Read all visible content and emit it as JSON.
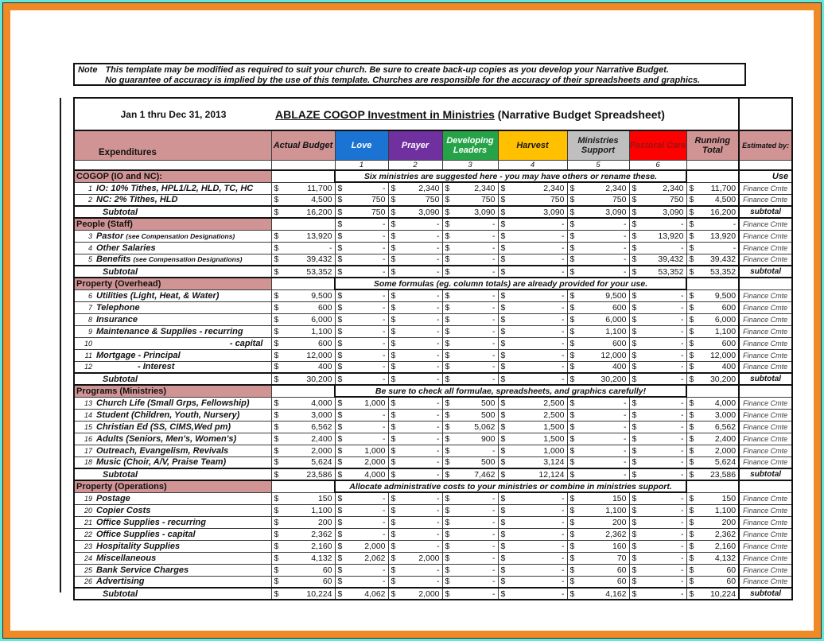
{
  "theme": {
    "frame_teal": "#64e6d9",
    "frame_orange": "#f08a26",
    "header_pink": "#d19494",
    "border_black": "#111111"
  },
  "note": {
    "label": "Note",
    "line1": "This template may be modified as required to suit your church.  Be sure to create back-up copies as you develop your Narrative Budget.",
    "line2": "No guarantee of accuracy is implied by the use of this template.  Churches are responsible for the accuracy of their spreadsheets and graphics."
  },
  "title": {
    "date_range": "Jan 1 thru Dec 31, 2013",
    "underlined": "ABLAZE COGOP  Investment in Ministries",
    "rest": " (Narrative Budget Spreadsheet)"
  },
  "columns": {
    "expenditures": "Expenditures",
    "actual_budget": "Actual Budget",
    "running_total": "Running Total",
    "estimated_by": "Estimated by:",
    "ministries": [
      {
        "label": "Love",
        "number": "1",
        "bg": "#1b74d4",
        "fg": "#ffffff"
      },
      {
        "label": "Prayer",
        "number": "2",
        "bg": "#7030a0",
        "fg": "#ffffff"
      },
      {
        "label": "Developing Leaders",
        "number": "3",
        "bg": "#26a348",
        "fg": "#ffffff"
      },
      {
        "label": "Harvest",
        "number": "4",
        "bg": "#ffc000",
        "fg": "#1a1a1a"
      },
      {
        "label": "Ministries Support",
        "number": "5",
        "bg": "#bfbfbf",
        "fg": "#1a1a1a"
      },
      {
        "label": "Pastoral Care",
        "number": "6",
        "bg": "#fe0000",
        "fg": "#9c1313"
      }
    ]
  },
  "sections": [
    {
      "name": "COGOP (IO and NC):",
      "header": {
        "type": "note",
        "note": "Six ministries are suggested here - you may have others or rename these.",
        "est": "Use"
      },
      "rows": [
        {
          "num": "1",
          "label": "IO: 10% Tithes, HPL1/L2, HLD, TC, HC",
          "values": [
            "11,700",
            "-",
            "2,340",
            "2,340",
            "2,340",
            "2,340",
            "2,340",
            "11,700"
          ],
          "est": "Finance Cmte"
        },
        {
          "num": "2",
          "label": "NC: 2% Tithes, HLD",
          "values": [
            "4,500",
            "750",
            "750",
            "750",
            "750",
            "750",
            "750",
            "4,500"
          ],
          "est": "Finance Cmte"
        }
      ],
      "subtotal": {
        "label": "Subtotal",
        "values": [
          "16,200",
          "750",
          "3,090",
          "3,090",
          "3,090",
          "3,090",
          "3,090",
          "16,200"
        ],
        "est": "subtotal"
      }
    },
    {
      "name": "People (Staff)",
      "header": {
        "type": "dashes",
        "values": [
          "",
          "-",
          "-",
          "-",
          "-",
          "-",
          "-",
          "-"
        ],
        "est": "Finance Cmte"
      },
      "rows": [
        {
          "num": "3",
          "label": "Pastor",
          "label_small": "(see Compensation Designations)",
          "values": [
            "13,920",
            "-",
            "-",
            "-",
            "-",
            "-",
            "13,920",
            "13,920"
          ],
          "est": "Finance Cmte"
        },
        {
          "num": "4",
          "label": "Other Salaries",
          "values": [
            "-",
            "-",
            "-",
            "-",
            "-",
            "-",
            "-",
            "-"
          ],
          "est": "Finance Cmte"
        },
        {
          "num": "5",
          "label": "Benefits",
          "label_small": "(see Compensation Designations)",
          "values": [
            "39,432",
            "-",
            "-",
            "-",
            "-",
            "-",
            "39,432",
            "39,432"
          ],
          "est": "Finance Cmte"
        }
      ],
      "subtotal": {
        "label": "Subtotal",
        "values": [
          "53,352",
          "-",
          "-",
          "-",
          "-",
          "-",
          "53,352",
          "53,352"
        ],
        "est": "subtotal"
      }
    },
    {
      "name": "Property (Overhead)",
      "header": {
        "type": "note",
        "note": "Some formulas (eg. column totals) are already provided for your use.",
        "est": ""
      },
      "rows": [
        {
          "num": "6",
          "label": "Utilities (Light, Heat, & Water)",
          "values": [
            "9,500",
            "-",
            "-",
            "-",
            "-",
            "9,500",
            "-",
            "9,500"
          ],
          "est": "Finance Cmte"
        },
        {
          "num": "7",
          "label": "Telephone",
          "values": [
            "600",
            "-",
            "-",
            "-",
            "-",
            "600",
            "-",
            "600"
          ],
          "est": "Finance Cmte"
        },
        {
          "num": "8",
          "label": "Insurance",
          "values": [
            "6,000",
            "-",
            "-",
            "-",
            "-",
            "6,000",
            "-",
            "6,000"
          ],
          "est": "Finance Cmte"
        },
        {
          "num": "9",
          "label": "Maintenance & Supplies - recurring",
          "values": [
            "1,100",
            "-",
            "-",
            "-",
            "-",
            "1,100",
            "-",
            "1,100"
          ],
          "est": "Finance Cmte"
        },
        {
          "num": "10",
          "label": "- capital",
          "label_style": "alignr",
          "values": [
            "600",
            "-",
            "-",
            "-",
            "-",
            "600",
            "-",
            "600"
          ],
          "est": "Finance Cmte"
        },
        {
          "num": "11",
          "label": "Mortgage  - Principal",
          "values": [
            "12,000",
            "-",
            "-",
            "-",
            "-",
            "12,000",
            "-",
            "12,000"
          ],
          "est": "Finance Cmte"
        },
        {
          "num": "12",
          "label": "- Interest",
          "label_style": "indent2",
          "values": [
            "400",
            "-",
            "-",
            "-",
            "-",
            "400",
            "-",
            "400"
          ],
          "est": "Finance Cmte"
        }
      ],
      "subtotal": {
        "label": "Subtotal",
        "values": [
          "30,200",
          "-",
          "-",
          "-",
          "-",
          "30,200",
          "-",
          "30,200"
        ],
        "est": "subtotal"
      }
    },
    {
      "name": "Programs (Ministries)",
      "header": {
        "type": "note",
        "note": "Be sure to check all formulae, spreadsheets, and graphics carefully!",
        "est": ""
      },
      "rows": [
        {
          "num": "13",
          "label": "Church Life (Small Grps, Fellowship)",
          "values": [
            "4,000",
            "1,000",
            "-",
            "500",
            "2,500",
            "-",
            "-",
            "4,000"
          ],
          "est": "Finance Cmte"
        },
        {
          "num": "14",
          "label": "Student (Children, Youth, Nursery)",
          "values": [
            "3,000",
            "-",
            "-",
            "500",
            "2,500",
            "-",
            "-",
            "3,000"
          ],
          "est": "Finance Cmte"
        },
        {
          "num": "15",
          "label": "Christian Ed (SS, CIMS,Wed pm)",
          "values": [
            "6,562",
            "-",
            "-",
            "5,062",
            "1,500",
            "-",
            "-",
            "6,562"
          ],
          "est": "Finance Cmte"
        },
        {
          "num": "16",
          "label": "Adults (Seniors, Men's, Women's)",
          "values": [
            "2,400",
            "-",
            "-",
            "900",
            "1,500",
            "-",
            "-",
            "2,400"
          ],
          "est": "Finance Cmte"
        },
        {
          "num": "17",
          "label": "Outreach, Evangelism, Revivals",
          "values": [
            "2,000",
            "1,000",
            "-",
            "-",
            "1,000",
            "-",
            "-",
            "2,000"
          ],
          "est": "Finance Cmte"
        },
        {
          "num": "18",
          "label": "Music (Choir, A/V, Praise Team)",
          "values": [
            "5,624",
            "2,000",
            "-",
            "500",
            "3,124",
            "-",
            "-",
            "5,624"
          ],
          "est": "Finance Cmte"
        }
      ],
      "subtotal": {
        "label": "Subtotal",
        "values": [
          "23,586",
          "4,000",
          "-",
          "7,462",
          "12,124",
          "-",
          "-",
          "23,586"
        ],
        "est": "subtotal"
      }
    },
    {
      "name": "Property (Operations)",
      "header": {
        "type": "note",
        "note": "Allocate administrative costs to your ministries or combine in ministries support.",
        "est": ""
      },
      "rows": [
        {
          "num": "19",
          "label": "Postage",
          "values": [
            "150",
            "-",
            "-",
            "-",
            "-",
            "150",
            "-",
            "150"
          ],
          "est": "Finance Cmte"
        },
        {
          "num": "20",
          "label": "Copier Costs",
          "values": [
            "1,100",
            "-",
            "-",
            "-",
            "-",
            "1,100",
            "-",
            "1,100"
          ],
          "est": "Finance Cmte"
        },
        {
          "num": "21",
          "label": "Office Supplies - recurring",
          "values": [
            "200",
            "-",
            "-",
            "-",
            "-",
            "200",
            "-",
            "200"
          ],
          "est": "Finance Cmte"
        },
        {
          "num": "22",
          "label": "Office Supplies - capital",
          "values": [
            "2,362",
            "-",
            "-",
            "-",
            "-",
            "2,362",
            "-",
            "2,362"
          ],
          "est": "Finance Cmte"
        },
        {
          "num": "23",
          "label": "Hospitality Supplies",
          "values": [
            "2,160",
            "2,000",
            "-",
            "-",
            "-",
            "160",
            "-",
            "2,160"
          ],
          "est": "Finance Cmte"
        },
        {
          "num": "24",
          "label": "Miscellaneous",
          "values": [
            "4,132",
            "2,062",
            "2,000",
            "-",
            "-",
            "70",
            "-",
            "4,132"
          ],
          "est": "Finance Cmte"
        },
        {
          "num": "25",
          "label": "Bank Service Charges",
          "values": [
            "60",
            "-",
            "-",
            "-",
            "-",
            "60",
            "-",
            "60"
          ],
          "est": "Finance Cmte"
        },
        {
          "num": "26",
          "label": "Advertising",
          "values": [
            "60",
            "-",
            "-",
            "-",
            "-",
            "60",
            "-",
            "60"
          ],
          "est": "Finance Cmte"
        }
      ],
      "subtotal": {
        "label": "Subtotal",
        "values": [
          "10,224",
          "4,062",
          "2,000",
          "-",
          "-",
          "4,162",
          "-",
          "10,224"
        ],
        "est": "subtotal"
      }
    }
  ]
}
